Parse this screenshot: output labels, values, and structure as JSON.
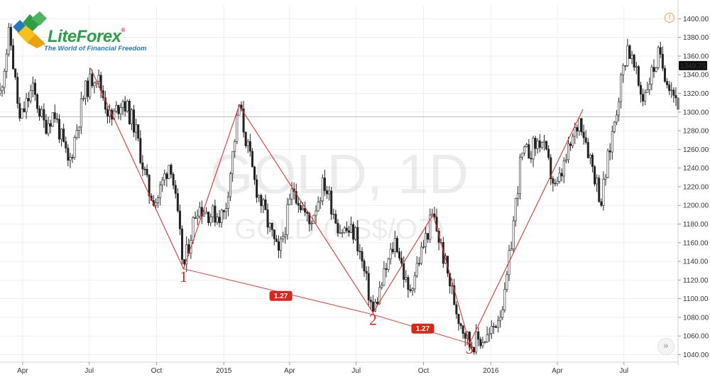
{
  "logo": {
    "name": "LiteForex",
    "registered": "®",
    "tagline": "The World of Financial Freedom"
  },
  "header": {
    "alert_icon": "info-circle-icon",
    "alert_symbol": "!"
  },
  "controls": {
    "scroll_right_icon": "double-chevron-right-icon",
    "scroll_right_symbol": "»"
  },
  "chart_data": {
    "type": "candlestick",
    "title": "GOLD, 1D",
    "subtitle": "GOLD (US$/OZ)",
    "y_axis": {
      "ticks": [
        "1040.00",
        "1060.00",
        "1080.00",
        "1100.00",
        "1120.00",
        "1140.00",
        "1160.00",
        "1180.00",
        "1200.00",
        "1220.00",
        "1240.00",
        "1260.00",
        "1280.00",
        "1300.00",
        "1320.00",
        "1340.00",
        "1360.00",
        "1380.00",
        "1400.00"
      ],
      "range": [
        1032,
        1414
      ],
      "position": "right"
    },
    "x_axis": {
      "ticks": [
        "Apr",
        "Jul",
        "Oct",
        "2015",
        "Apr",
        "Jul",
        "Oct",
        "2016",
        "Apr",
        "Jul"
      ],
      "tick_dates": [
        "2014-04-01",
        "2014-07-01",
        "2014-10-01",
        "2015-01-01",
        "2015-04-01",
        "2015-07-01",
        "2015-10-01",
        "2016-01-01",
        "2016-04-01",
        "2016-07-01"
      ],
      "range": [
        "2014-03-01",
        "2016-09-13"
      ]
    },
    "last_price": "1349.75",
    "horizontal_line": 1295,
    "price_path": [
      [
        "2014-03-01",
        1320
      ],
      [
        "2014-03-14",
        1386
      ],
      [
        "2014-03-28",
        1290
      ],
      [
        "2014-04-14",
        1325
      ],
      [
        "2014-05-01",
        1285
      ],
      [
        "2014-05-14",
        1300
      ],
      [
        "2014-06-03",
        1242
      ],
      [
        "2014-06-24",
        1320
      ],
      [
        "2014-07-10",
        1343
      ],
      [
        "2014-07-31",
        1290
      ],
      [
        "2014-08-15",
        1315
      ],
      [
        "2014-09-01",
        1285
      ],
      [
        "2014-09-20",
        1215
      ],
      [
        "2014-10-01",
        1205
      ],
      [
        "2014-10-20",
        1250
      ],
      [
        "2014-11-07",
        1132
      ],
      [
        "2014-11-25",
        1200
      ],
      [
        "2014-12-15",
        1190
      ],
      [
        "2015-01-02",
        1190
      ],
      [
        "2015-01-22",
        1307
      ],
      [
        "2015-02-12",
        1225
      ],
      [
        "2015-03-17",
        1145
      ],
      [
        "2015-04-06",
        1220
      ],
      [
        "2015-04-28",
        1180
      ],
      [
        "2015-05-18",
        1225
      ],
      [
        "2015-06-08",
        1175
      ],
      [
        "2015-06-30",
        1170
      ],
      [
        "2015-07-24",
        1085
      ],
      [
        "2015-08-24",
        1165
      ],
      [
        "2015-09-10",
        1105
      ],
      [
        "2015-10-14",
        1190
      ],
      [
        "2015-11-16",
        1085
      ],
      [
        "2015-12-03",
        1052
      ],
      [
        "2015-12-31",
        1060
      ],
      [
        "2016-01-20",
        1100
      ],
      [
        "2016-02-11",
        1250
      ],
      [
        "2016-03-10",
        1270
      ],
      [
        "2016-03-30",
        1215
      ],
      [
        "2016-05-02",
        1295
      ],
      [
        "2016-05-31",
        1205
      ],
      [
        "2016-06-24",
        1320
      ],
      [
        "2016-07-06",
        1372
      ],
      [
        "2016-07-26",
        1315
      ],
      [
        "2016-08-17",
        1360
      ],
      [
        "2016-09-13",
        1310
      ]
    ],
    "wave_lines": [
      [
        "2014-07-03",
        1347
      ],
      [
        "2014-11-07",
        1132
      ],
      [
        "2015-01-22",
        1307
      ],
      [
        "2015-07-24",
        1085
      ],
      [
        "2015-10-14",
        1190
      ],
      [
        "2015-12-03",
        1052
      ],
      [
        "2016-05-06",
        1303
      ]
    ],
    "fib_lines": [
      [
        [
          "2014-11-07",
          1132
        ],
        [
          "2015-07-24",
          1083
        ]
      ],
      [
        [
          "2015-07-24",
          1083
        ],
        [
          "2015-12-03",
          1052
        ]
      ]
    ],
    "wave_labels": [
      {
        "text": "1",
        "x": "2014-11-07",
        "y": 1118
      },
      {
        "text": "2",
        "x": "2015-07-24",
        "y": 1072
      },
      {
        "text": "3",
        "x": "2015-12-03",
        "y": 1041
      }
    ],
    "ratio_labels": [
      {
        "text": "1.27",
        "x": "2015-03-20",
        "y": 1103
      },
      {
        "text": "1.27",
        "x": "2015-09-30",
        "y": 1068
      }
    ],
    "colors": {
      "candles": "#222222",
      "wave_lines": "#e3342c",
      "horizontal_line": "#bcbcbc",
      "last_price_badge": "#111111",
      "ratio_badge": "#d8281e",
      "logo_green": "#2e9d45",
      "logo_yellow": "#f5c21a",
      "logo_blue": "#1f7ac3"
    },
    "grid": true,
    "legend": "none"
  }
}
